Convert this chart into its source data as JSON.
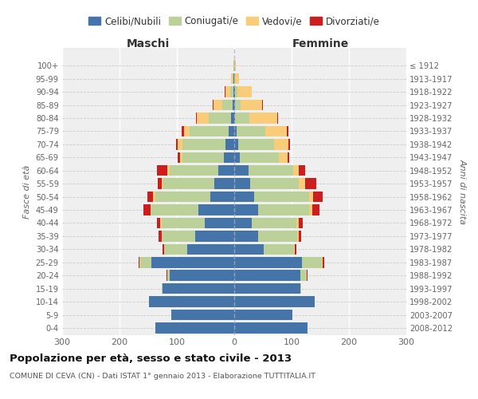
{
  "age_groups": [
    "0-4",
    "5-9",
    "10-14",
    "15-19",
    "20-24",
    "25-29",
    "30-34",
    "35-39",
    "40-44",
    "45-49",
    "50-54",
    "55-59",
    "60-64",
    "65-69",
    "70-74",
    "75-79",
    "80-84",
    "85-89",
    "90-94",
    "95-99",
    "100+"
  ],
  "birth_years": [
    "2008-2012",
    "2003-2007",
    "1998-2002",
    "1993-1997",
    "1988-1992",
    "1983-1987",
    "1978-1982",
    "1973-1977",
    "1968-1972",
    "1963-1967",
    "1958-1962",
    "1953-1957",
    "1948-1952",
    "1943-1947",
    "1938-1942",
    "1933-1937",
    "1928-1932",
    "1923-1927",
    "1918-1922",
    "1913-1917",
    "≤ 1912"
  ],
  "maschi": {
    "celibi": [
      138,
      110,
      148,
      125,
      112,
      145,
      82,
      68,
      52,
      62,
      42,
      35,
      28,
      18,
      15,
      10,
      5,
      3,
      1,
      1,
      0
    ],
    "coniugati": [
      0,
      0,
      0,
      1,
      5,
      20,
      40,
      58,
      75,
      82,
      95,
      88,
      85,
      72,
      75,
      68,
      40,
      18,
      6,
      2,
      1
    ],
    "vedovi": [
      0,
      0,
      0,
      0,
      0,
      0,
      0,
      1,
      2,
      2,
      4,
      4,
      4,
      4,
      8,
      10,
      20,
      15,
      8,
      3,
      1
    ],
    "divorziati": [
      0,
      0,
      0,
      0,
      1,
      1,
      3,
      5,
      6,
      12,
      10,
      7,
      18,
      4,
      4,
      4,
      2,
      1,
      1,
      0,
      0
    ]
  },
  "femmine": {
    "nubili": [
      128,
      102,
      140,
      115,
      115,
      118,
      52,
      42,
      30,
      42,
      35,
      28,
      25,
      10,
      7,
      4,
      2,
      1,
      1,
      0,
      0
    ],
    "coniugate": [
      0,
      0,
      0,
      1,
      12,
      35,
      52,
      68,
      78,
      88,
      95,
      85,
      78,
      68,
      62,
      50,
      25,
      10,
      4,
      1,
      0
    ],
    "vedove": [
      0,
      0,
      0,
      0,
      0,
      1,
      2,
      3,
      5,
      6,
      8,
      10,
      10,
      15,
      25,
      38,
      48,
      38,
      25,
      8,
      3
    ],
    "divorziate": [
      0,
      0,
      0,
      0,
      1,
      3,
      3,
      4,
      7,
      12,
      16,
      20,
      10,
      3,
      3,
      2,
      1,
      1,
      0,
      0,
      0
    ]
  },
  "colors": {
    "celibi": "#4575a8",
    "coniugati": "#bcd09a",
    "vedovi": "#f8cc78",
    "divorziati": "#cc1e1e"
  },
  "xlim": 300,
  "title": "Popolazione per età, sesso e stato civile - 2013",
  "subtitle": "COMUNE DI CEVA (CN) - Dati ISTAT 1° gennaio 2013 - Elaborazione TUTTITALIA.IT",
  "ylabel_left": "Fasce di età",
  "ylabel_right": "Anni di nascita",
  "xlabel_maschi": "Maschi",
  "xlabel_femmine": "Femmine",
  "bg_color": "#efefef"
}
